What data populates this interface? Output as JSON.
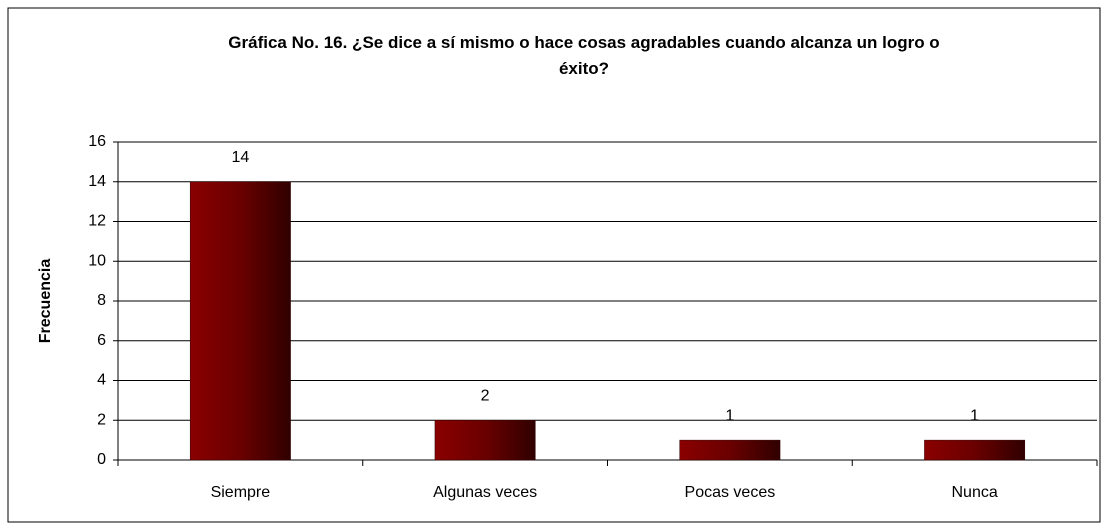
{
  "chart_data": {
    "type": "bar",
    "title": "Gráfica No. 16. ¿Se dice a sí mismo o hace cosas agradables cuando alcanza un logro o éxito?",
    "y_label": "Frecuencia",
    "categories": [
      "Siempre",
      "Algunas veces",
      "Pocas veces",
      "Nunca"
    ],
    "values": [
      14,
      2,
      1,
      1
    ],
    "color": "#800000",
    "ylim": [
      0,
      16
    ],
    "yticks": [
      0,
      2,
      4,
      6,
      8,
      10,
      12,
      14,
      16
    ],
    "grid": true
  }
}
